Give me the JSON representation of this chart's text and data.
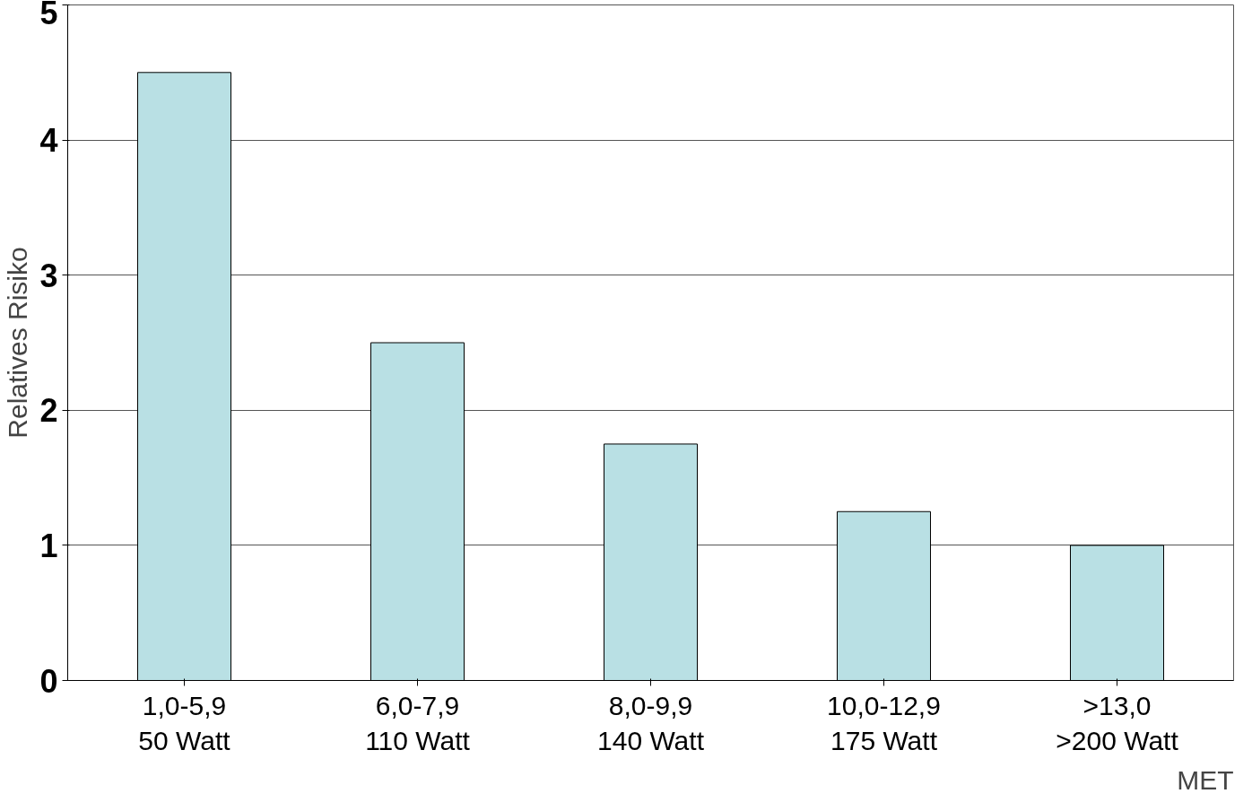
{
  "chart_data": {
    "type": "bar",
    "ylabel": "Relatives Risiko",
    "xlabel": "MET",
    "categories": [
      "1,0-5,9\n50 Watt",
      "6,0-7,9\n110 Watt",
      "8,0-9,9\n140 Watt",
      "10,0-12,9\n175 Watt",
      ">13,0\n>200 Watt"
    ],
    "values": [
      4.5,
      2.5,
      1.75,
      1.25,
      1.0
    ],
    "color": "#b9e0e4",
    "ylim": [
      0,
      5
    ],
    "yticks": [
      0,
      1,
      2,
      3,
      4,
      5
    ],
    "grid": "y"
  }
}
